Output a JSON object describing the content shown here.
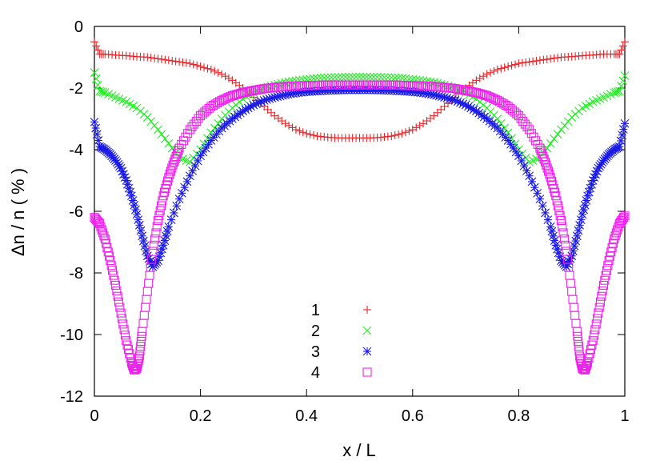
{
  "chart_data": {
    "type": "scatter",
    "xlabel": "x / L",
    "ylabel": "Δn / n ( % )",
    "xlim": [
      0,
      1
    ],
    "ylim": [
      -12,
      0
    ],
    "x_ticks": [
      0,
      0.2,
      0.4,
      0.6,
      0.8,
      1
    ],
    "x_tick_labels": [
      "0",
      "0.2",
      "0.4",
      "0.6",
      "0.8",
      "1"
    ],
    "y_ticks": [
      0,
      -2,
      -4,
      -6,
      -8,
      -10,
      -12
    ],
    "y_tick_labels": [
      "0",
      "-2",
      "-4",
      "-6",
      "-8",
      "-10",
      "-12"
    ],
    "grid": false,
    "legend_position": "bottom-center",
    "series": [
      {
        "name": "1",
        "marker": "plus",
        "color": "#e8262a",
        "x": [
          0.0,
          0.01,
          0.02,
          0.04,
          0.06,
          0.08,
          0.1,
          0.12,
          0.14,
          0.16,
          0.18,
          0.2,
          0.22,
          0.24,
          0.26,
          0.28,
          0.3,
          0.32,
          0.34,
          0.36,
          0.38,
          0.4,
          0.42,
          0.44,
          0.46,
          0.48,
          0.5,
          0.52,
          0.54,
          0.56,
          0.58,
          0.6,
          0.62,
          0.64,
          0.66,
          0.68,
          0.7,
          0.72,
          0.74,
          0.76,
          0.78,
          0.8,
          0.82,
          0.84,
          0.86,
          0.88,
          0.9,
          0.92,
          0.94,
          0.96,
          0.98,
          0.99,
          1.0
        ],
        "y": [
          -0.5,
          -0.9,
          -0.9,
          -0.93,
          -0.95,
          -0.98,
          -1.0,
          -1.05,
          -1.1,
          -1.15,
          -1.2,
          -1.3,
          -1.4,
          -1.55,
          -1.75,
          -2.0,
          -2.3,
          -2.6,
          -2.9,
          -3.15,
          -3.35,
          -3.48,
          -3.56,
          -3.6,
          -3.62,
          -3.62,
          -3.62,
          -3.62,
          -3.6,
          -3.56,
          -3.48,
          -3.35,
          -3.15,
          -2.9,
          -2.6,
          -2.3,
          -2.0,
          -1.75,
          -1.55,
          -1.4,
          -1.3,
          -1.2,
          -1.15,
          -1.1,
          -1.05,
          -1.0,
          -0.98,
          -0.95,
          -0.93,
          -0.9,
          -0.9,
          -0.9,
          -0.5
        ]
      },
      {
        "name": "2",
        "marker": "cross",
        "color": "#22ee22",
        "x": [
          0.0,
          0.01,
          0.02,
          0.04,
          0.06,
          0.08,
          0.1,
          0.12,
          0.14,
          0.16,
          0.18,
          0.2,
          0.22,
          0.24,
          0.26,
          0.28,
          0.3,
          0.32,
          0.34,
          0.36,
          0.38,
          0.4,
          0.42,
          0.44,
          0.46,
          0.48,
          0.5,
          0.52,
          0.54,
          0.56,
          0.58,
          0.6,
          0.62,
          0.64,
          0.66,
          0.68,
          0.7,
          0.72,
          0.74,
          0.76,
          0.78,
          0.8,
          0.82,
          0.84,
          0.86,
          0.88,
          0.9,
          0.92,
          0.94,
          0.96,
          0.98,
          0.99,
          1.0
        ],
        "y": [
          -1.5,
          -2.1,
          -2.15,
          -2.3,
          -2.45,
          -2.65,
          -2.95,
          -3.35,
          -3.8,
          -4.25,
          -4.4,
          -4.0,
          -3.45,
          -3.0,
          -2.65,
          -2.35,
          -2.15,
          -2.0,
          -1.9,
          -1.82,
          -1.76,
          -1.72,
          -1.68,
          -1.66,
          -1.65,
          -1.64,
          -1.64,
          -1.64,
          -1.65,
          -1.66,
          -1.68,
          -1.72,
          -1.76,
          -1.82,
          -1.9,
          -2.0,
          -2.15,
          -2.35,
          -2.65,
          -3.0,
          -3.45,
          -4.0,
          -4.4,
          -4.25,
          -3.8,
          -3.35,
          -2.95,
          -2.65,
          -2.45,
          -2.3,
          -2.15,
          -2.1,
          -1.6
        ]
      },
      {
        "name": "3",
        "marker": "star",
        "color": "#1a1ae6",
        "x": [
          0.0,
          0.01,
          0.02,
          0.03,
          0.04,
          0.05,
          0.06,
          0.07,
          0.08,
          0.09,
          0.1,
          0.11,
          0.12,
          0.13,
          0.14,
          0.16,
          0.18,
          0.2,
          0.22,
          0.24,
          0.26,
          0.28,
          0.3,
          0.32,
          0.34,
          0.36,
          0.38,
          0.4,
          0.42,
          0.44,
          0.46,
          0.48,
          0.5,
          0.52,
          0.54,
          0.56,
          0.58,
          0.6,
          0.62,
          0.64,
          0.66,
          0.68,
          0.7,
          0.72,
          0.74,
          0.76,
          0.78,
          0.8,
          0.82,
          0.84,
          0.86,
          0.87,
          0.88,
          0.89,
          0.9,
          0.91,
          0.92,
          0.93,
          0.94,
          0.95,
          0.96,
          0.97,
          0.98,
          0.99,
          1.0
        ],
        "y": [
          -3.1,
          -3.9,
          -4.0,
          -4.15,
          -4.35,
          -4.6,
          -5.0,
          -5.5,
          -6.1,
          -6.8,
          -7.45,
          -7.8,
          -7.6,
          -7.1,
          -6.5,
          -5.6,
          -4.85,
          -4.2,
          -3.7,
          -3.3,
          -3.0,
          -2.75,
          -2.55,
          -2.4,
          -2.3,
          -2.22,
          -2.16,
          -2.12,
          -2.1,
          -2.08,
          -2.07,
          -2.06,
          -2.06,
          -2.06,
          -2.07,
          -2.08,
          -2.1,
          -2.12,
          -2.16,
          -2.22,
          -2.3,
          -2.4,
          -2.55,
          -2.75,
          -3.0,
          -3.3,
          -3.7,
          -4.2,
          -4.85,
          -5.6,
          -6.5,
          -7.1,
          -7.6,
          -7.8,
          -7.45,
          -6.8,
          -6.1,
          -5.5,
          -5.0,
          -4.6,
          -4.35,
          -4.15,
          -4.0,
          -3.9,
          -3.15
        ]
      },
      {
        "name": "4",
        "marker": "square",
        "color": "#ee22ee",
        "x": [
          0.0,
          0.01,
          0.02,
          0.03,
          0.04,
          0.05,
          0.06,
          0.07,
          0.075,
          0.08,
          0.085,
          0.09,
          0.1,
          0.11,
          0.12,
          0.13,
          0.14,
          0.15,
          0.16,
          0.18,
          0.2,
          0.22,
          0.24,
          0.26,
          0.28,
          0.3,
          0.32,
          0.34,
          0.36,
          0.38,
          0.4,
          0.42,
          0.44,
          0.46,
          0.48,
          0.5,
          0.52,
          0.54,
          0.56,
          0.58,
          0.6,
          0.62,
          0.64,
          0.66,
          0.68,
          0.7,
          0.72,
          0.74,
          0.76,
          0.78,
          0.8,
          0.82,
          0.84,
          0.85,
          0.86,
          0.87,
          0.88,
          0.89,
          0.9,
          0.91,
          0.915,
          0.92,
          0.925,
          0.93,
          0.94,
          0.95,
          0.96,
          0.97,
          0.98,
          0.99,
          1.0
        ],
        "y": [
          -6.2,
          -6.4,
          -6.9,
          -7.6,
          -8.4,
          -9.3,
          -10.2,
          -10.9,
          -11.15,
          -11.1,
          -10.7,
          -9.9,
          -8.6,
          -7.3,
          -6.3,
          -5.5,
          -4.9,
          -4.4,
          -3.95,
          -3.35,
          -2.9,
          -2.6,
          -2.4,
          -2.25,
          -2.15,
          -2.08,
          -2.02,
          -1.98,
          -1.95,
          -1.93,
          -1.92,
          -1.91,
          -1.9,
          -1.9,
          -1.9,
          -1.9,
          -1.9,
          -1.9,
          -1.9,
          -1.91,
          -1.92,
          -1.93,
          -1.95,
          -1.98,
          -2.02,
          -2.08,
          -2.15,
          -2.25,
          -2.4,
          -2.6,
          -2.9,
          -3.35,
          -3.95,
          -4.4,
          -4.9,
          -5.5,
          -6.3,
          -7.3,
          -8.6,
          -9.9,
          -10.7,
          -11.1,
          -11.15,
          -10.9,
          -10.2,
          -9.3,
          -8.4,
          -7.6,
          -6.9,
          -6.4,
          -6.15
        ]
      }
    ]
  }
}
